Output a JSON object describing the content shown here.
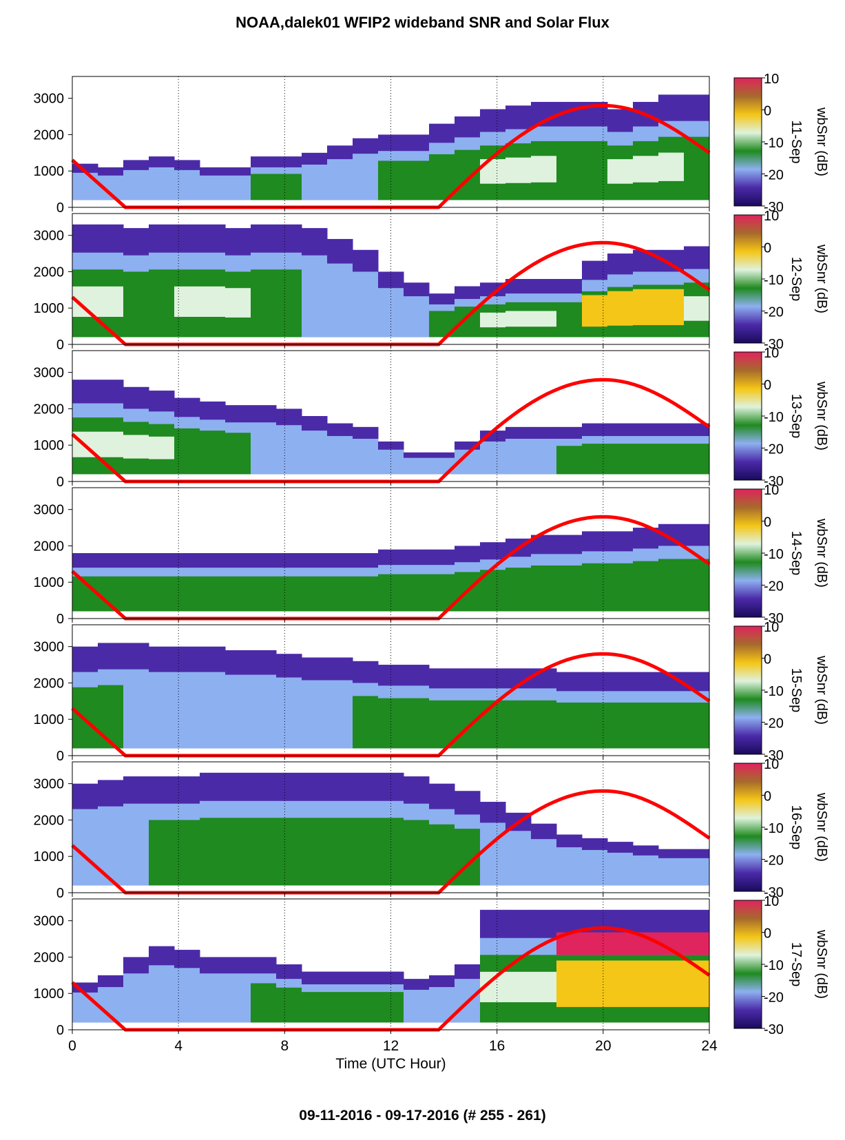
{
  "title": "NOAA,dalek01 WFIP2 wideband SNR and Solar Flux",
  "footer": "09-11-2016 - 09-17-2016   (# 255 - 261)",
  "colors": {
    "sun_curve": "#ff0000",
    "scale": [
      "#1a0a5c",
      "#4b2aa8",
      "#8db0f0",
      "#1f8a1f",
      "#dff2de",
      "#f4c617",
      "#a66a2c",
      "#e0245e"
    ]
  },
  "chart_data": {
    "type": "heatmap",
    "xlabel": "Time (UTC Hour)",
    "xlim": [
      0,
      24
    ],
    "x_ticks": [
      "0",
      "4",
      "8",
      "12",
      "16",
      "20",
      "24"
    ],
    "ylim": [
      0,
      3600
    ],
    "y_ticks": [
      "0",
      "1000",
      "2000",
      "3000"
    ],
    "colorbar_label": "wbSnr (dB)",
    "colorbar_range": [
      -30,
      10
    ],
    "colorbar_ticks": [
      "10",
      "0",
      "-10",
      "-20",
      "-30"
    ],
    "grid": "vertical dotted lines every 4 h",
    "panels": [
      {
        "date": "11-Sep",
        "top": [
          1200,
          1100,
          1300,
          1400,
          1300,
          1100,
          1100,
          1400,
          1400,
          1500,
          1700,
          1900,
          2000,
          2000,
          2300,
          2500,
          2700,
          2800,
          2900,
          2900,
          2900,
          2700,
          2900,
          3100,
          3100
        ],
        "green": [
          0,
          0,
          0,
          0,
          0,
          0,
          0,
          1,
          1,
          0,
          0,
          0,
          1,
          1,
          1,
          1,
          2,
          2,
          2,
          1,
          1,
          2,
          2,
          2,
          1
        ]
      },
      {
        "date": "12-Sep",
        "top": [
          3300,
          3300,
          3200,
          3300,
          3300,
          3300,
          3200,
          3300,
          3300,
          3200,
          2900,
          2600,
          2000,
          1700,
          1400,
          1600,
          1700,
          1800,
          1800,
          1800,
          2300,
          2500,
          2600,
          2600,
          2700
        ],
        "green": [
          2,
          2,
          1,
          1,
          2,
          2,
          2,
          1,
          1,
          0,
          0,
          0,
          0,
          0,
          1,
          1,
          2,
          2,
          2,
          1,
          3,
          3,
          3,
          3,
          2
        ]
      },
      {
        "date": "13-Sep",
        "top": [
          2800,
          2800,
          2600,
          2500,
          2300,
          2200,
          2100,
          2100,
          2000,
          1800,
          1600,
          1500,
          1100,
          800,
          800,
          1100,
          1400,
          1500,
          1500,
          1500,
          1600,
          1600,
          1600,
          1600,
          1600
        ],
        "green": [
          2,
          2,
          2,
          2,
          1,
          1,
          1,
          0,
          0,
          0,
          0,
          0,
          0,
          0,
          0,
          0,
          0,
          0,
          0,
          1,
          1,
          1,
          1,
          1,
          1
        ]
      },
      {
        "date": "14-Sep",
        "top": [
          1800,
          1800,
          1800,
          1800,
          1800,
          1800,
          1800,
          1800,
          1800,
          1800,
          1800,
          1800,
          1900,
          1900,
          1900,
          2000,
          2100,
          2200,
          2300,
          2300,
          2400,
          2400,
          2500,
          2600,
          2600
        ],
        "green": [
          1,
          1,
          1,
          1,
          1,
          1,
          1,
          1,
          1,
          1,
          1,
          1,
          1,
          1,
          1,
          1,
          1,
          1,
          1,
          1,
          1,
          1,
          1,
          1,
          1
        ]
      },
      {
        "date": "15-Sep",
        "top": [
          3000,
          3100,
          3100,
          3000,
          3000,
          3000,
          2900,
          2900,
          2800,
          2700,
          2700,
          2600,
          2500,
          2500,
          2400,
          2400,
          2400,
          2400,
          2400,
          2300,
          2300,
          2300,
          2300,
          2300,
          2300
        ],
        "green": [
          1,
          1,
          0,
          0,
          0,
          0,
          0,
          0,
          0,
          0,
          0,
          1,
          1,
          1,
          1,
          1,
          1,
          1,
          1,
          1,
          1,
          1,
          1,
          1,
          1
        ]
      },
      {
        "date": "16-Sep",
        "top": [
          3000,
          3100,
          3200,
          3200,
          3200,
          3300,
          3300,
          3300,
          3300,
          3300,
          3300,
          3300,
          3300,
          3200,
          3000,
          2800,
          2500,
          2200,
          1900,
          1600,
          1500,
          1400,
          1300,
          1200,
          1200
        ],
        "green": [
          0,
          0,
          0,
          1,
          1,
          1,
          1,
          1,
          1,
          1,
          1,
          1,
          1,
          1,
          1,
          1,
          0,
          0,
          0,
          0,
          0,
          0,
          0,
          0,
          0
        ]
      },
      {
        "date": "17-Sep",
        "top": [
          1300,
          1500,
          2000,
          2300,
          2200,
          2000,
          2000,
          2000,
          1800,
          1600,
          1600,
          1600,
          1600,
          1400,
          1500,
          1800,
          3300,
          3300,
          3300,
          3300,
          3300,
          3300,
          3300,
          3300,
          3300
        ],
        "green": [
          0,
          0,
          0,
          0,
          0,
          0,
          0,
          1,
          1,
          1,
          1,
          1,
          1,
          0,
          0,
          0,
          2,
          2,
          2,
          4,
          4,
          4,
          4,
          4,
          4
        ]
      }
    ],
    "solar_flux_curve": {
      "x": [
        0,
        2,
        13.8,
        20,
        24
      ],
      "y": [
        1300,
        0,
        0,
        2800,
        1500
      ]
    }
  }
}
